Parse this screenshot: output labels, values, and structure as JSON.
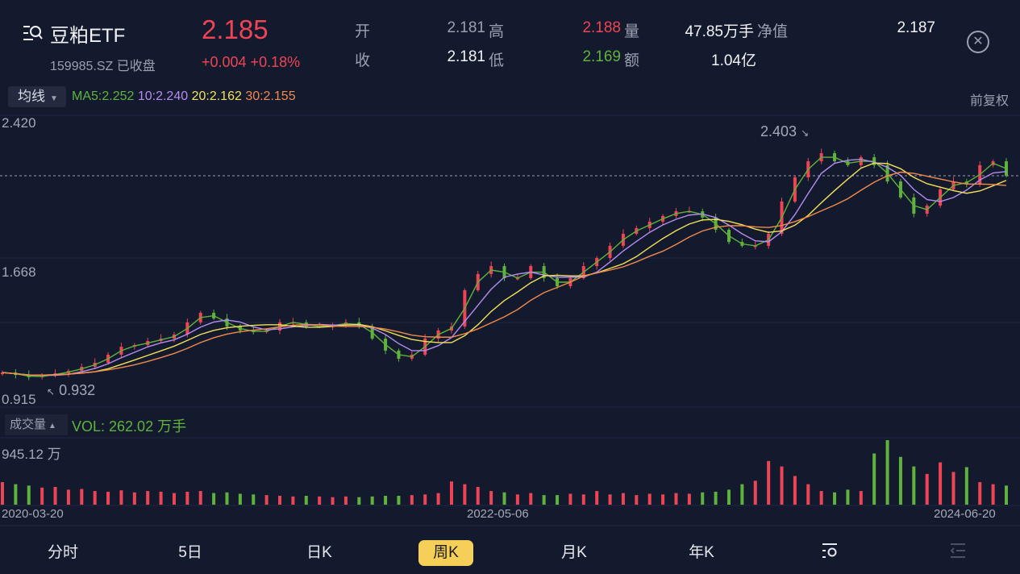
{
  "header": {
    "name": "豆粕ETF",
    "code_status": "159985.SZ 已收盘",
    "price": "2.185",
    "change": "+0.004 +0.18%",
    "stats": [
      {
        "label": "开",
        "value": "2.181",
        "color": "#9aa0b0"
      },
      {
        "label": "高",
        "value": "2.188",
        "color": "#ef4455"
      },
      {
        "label": "量",
        "value": "47.85万手",
        "color": "#f2f3f7"
      },
      {
        "label": "净值",
        "value": "2.187",
        "color": "#f2f3f7"
      },
      {
        "label": "收",
        "value": "2.181",
        "color": "#f2f3f7"
      },
      {
        "label": "低",
        "value": "2.169",
        "color": "#5fb33c"
      },
      {
        "label": "额",
        "value": "1.04亿",
        "color": "#f2f3f7"
      }
    ],
    "close_icon": "close-circle-icon"
  },
  "ma_bar": {
    "button": "均线",
    "ma5": "MA5:2.252",
    "ma10": "10:2.240",
    "ma20": "20:2.162",
    "ma30": "30:2.155",
    "adjust": "前复权"
  },
  "colors": {
    "up": "#ef4455",
    "down": "#5fb33c",
    "ma5": "#5fb33c",
    "ma10": "#b48cf0",
    "ma20": "#f2e05a",
    "ma30": "#f08a4b",
    "background": "#141a2e"
  },
  "volume_bar": {
    "button": "成交量",
    "value": "VOL: 262.02 万手",
    "max_label": "945.12 万"
  },
  "chart_data": {
    "type": "candlestick",
    "y_ticks": [
      "2.420",
      "1.668",
      "0.915"
    ],
    "ylim": [
      0.915,
      2.42
    ],
    "last_price": 2.185,
    "high_annotation": "2.403",
    "low_annotation": "0.932",
    "x_labels": [
      "2020-03-20",
      "2022-05-06",
      "2024-06-20"
    ],
    "closes": [
      0.972,
      0.957,
      0.943,
      0.952,
      0.967,
      0.982,
      1.007,
      1.032,
      1.082,
      1.131,
      1.141,
      1.166,
      1.181,
      1.206,
      1.281,
      1.34,
      1.305,
      1.256,
      1.231,
      1.221,
      1.231,
      1.281,
      1.281,
      1.256,
      1.256,
      1.266,
      1.281,
      1.256,
      1.181,
      1.107,
      1.057,
      1.082,
      1.181,
      1.231,
      1.256,
      1.479,
      1.579,
      1.628,
      1.554,
      1.554,
      1.628,
      1.554,
      1.504,
      1.554,
      1.628,
      1.678,
      1.753,
      1.827,
      1.862,
      1.902,
      1.937,
      1.966,
      1.966,
      1.927,
      1.852,
      1.777,
      1.753,
      1.753,
      1.827,
      2.026,
      2.175,
      2.274,
      2.324,
      2.274,
      2.25,
      2.299,
      2.25,
      2.15,
      2.051,
      1.951,
      2.001,
      2.101,
      2.15,
      2.135,
      2.25,
      2.274,
      2.185
    ],
    "volumes_wanshou": [
      330,
      300,
      280,
      250,
      260,
      220,
      230,
      200,
      190,
      210,
      180,
      200,
      190,
      170,
      190,
      200,
      170,
      180,
      160,
      150,
      140,
      130,
      120,
      130,
      120,
      110,
      120,
      110,
      120,
      130,
      130,
      140,
      150,
      170,
      340,
      300,
      260,
      200,
      180,
      150,
      170,
      140,
      140,
      160,
      150,
      200,
      150,
      170,
      140,
      160,
      150,
      170,
      160,
      180,
      190,
      220,
      300,
      350,
      640,
      560,
      420,
      300,
      200,
      180,
      220,
      200,
      750,
      945,
      700,
      560,
      450,
      620,
      480,
      550,
      330,
      300,
      280
    ],
    "volume_max": 945.12
  },
  "nav": {
    "tabs": [
      "分时",
      "5日",
      "日K",
      "周K",
      "月K",
      "年K"
    ],
    "active": "周K",
    "settings_icon": "chart-settings-icon",
    "collapse_icon": "collapse-menu-icon"
  }
}
